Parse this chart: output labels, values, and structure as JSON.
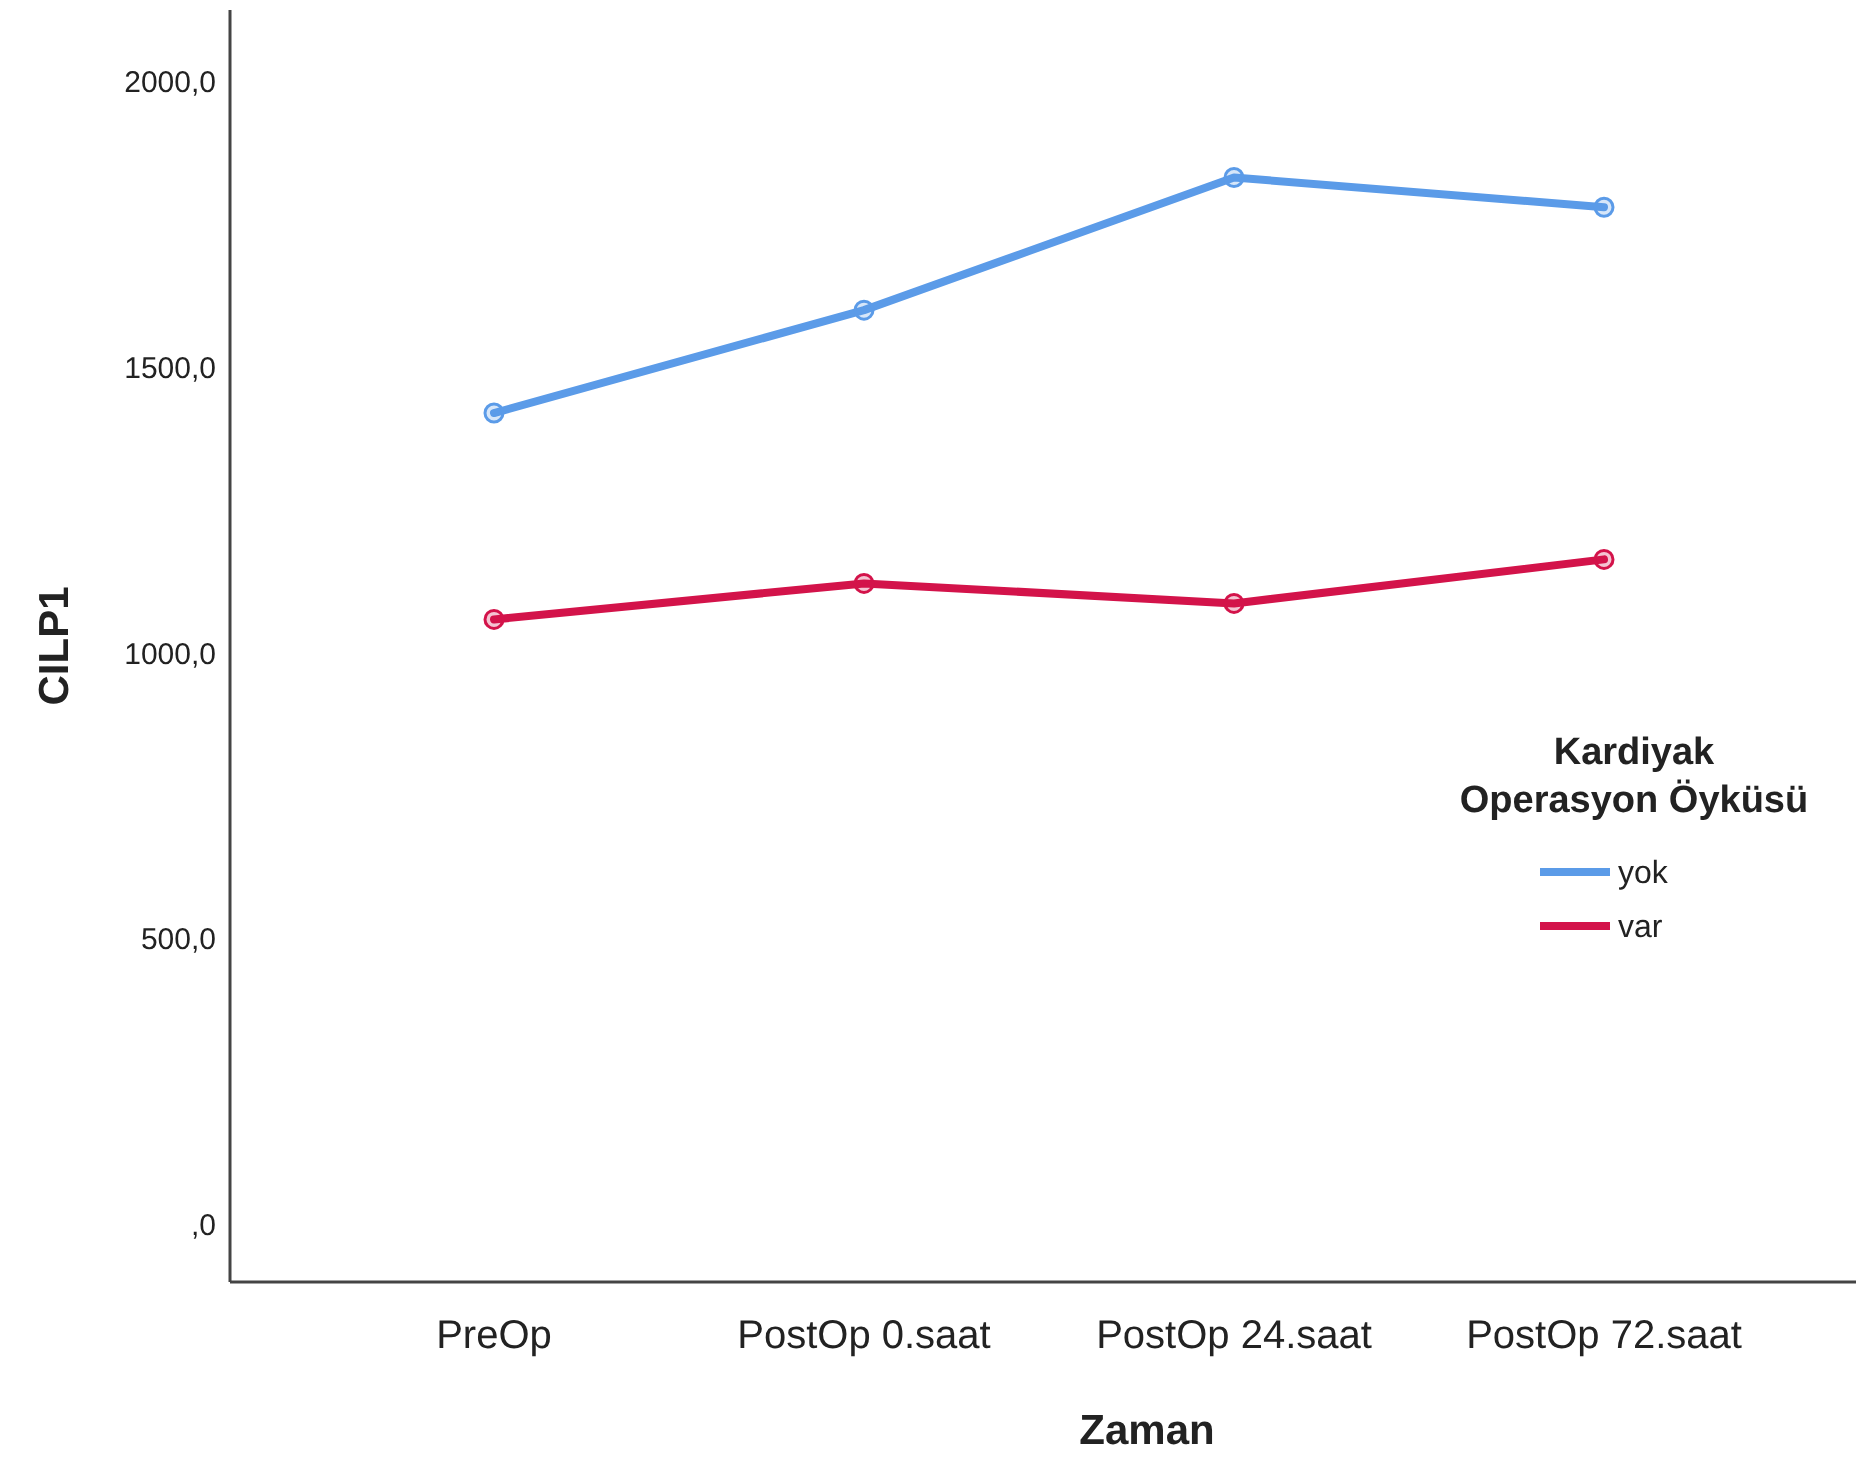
{
  "chart_data": {
    "type": "line",
    "xlabel": "Zaman",
    "ylabel": "CILP1",
    "legend_title": "Kardiyak\nOperasyon Öyküsü",
    "legend": "right",
    "marker": "circle",
    "categories": [
      "PreOp",
      "PostOp 0.saat",
      "PostOp 24.saat",
      "PostOp 72.saat"
    ],
    "ylim": [
      -100,
      2125
    ],
    "yticks": [
      {
        "value": 0,
        "label": ",0"
      },
      {
        "value": 500,
        "label": "500,0"
      },
      {
        "value": 1000,
        "label": "1000,0"
      },
      {
        "value": 1500,
        "label": "1500,0"
      },
      {
        "value": 2000,
        "label": "2000,0"
      }
    ],
    "series": [
      {
        "name": "yok",
        "color": "#5b9be8",
        "values": [
          1420,
          1600,
          1832,
          1780
        ]
      },
      {
        "name": "var",
        "color": "#d3134a",
        "values": [
          1059,
          1122,
          1087,
          1164
        ]
      }
    ]
  }
}
